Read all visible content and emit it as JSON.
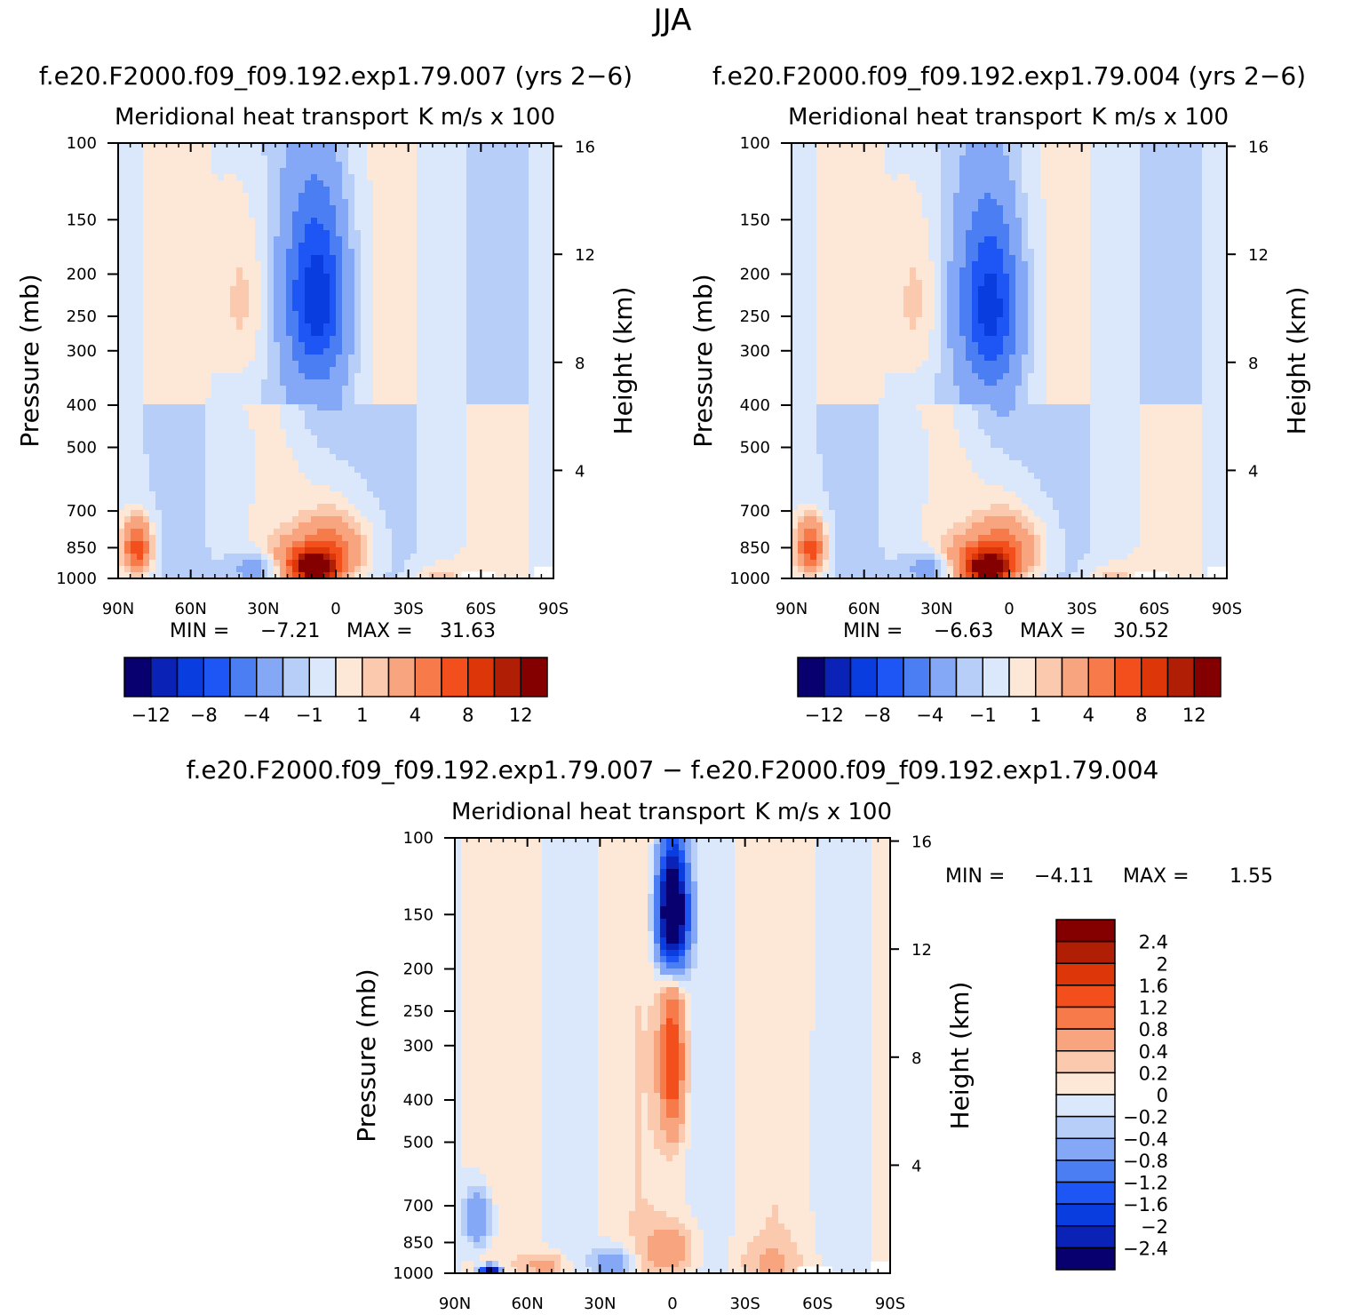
{
  "figure": {
    "title": "JJA"
  },
  "chart_data": [
    {
      "type": "heatmap",
      "title": "f.e20.F2000.f09_f09.192.exp1.79.007 (yrs 2−6)",
      "subtitle_left": "Meridional heat transport",
      "subtitle_right": "K m/s x 100",
      "xlabel": "",
      "ylabel": "Pressure (mb)",
      "y2label": "Height (km)",
      "x_ticks": [
        "90N",
        "60N",
        "30N",
        "0",
        "30S",
        "60S",
        "90S"
      ],
      "y_ticks": [
        "100",
        "150",
        "200",
        "250",
        "300",
        "400",
        "500",
        "700",
        "850",
        "1000"
      ],
      "y2_ticks": [
        "16",
        "12",
        "8",
        "4"
      ],
      "stats": {
        "min_label": "MIN =",
        "min": "−7.21",
        "max_label": "MAX =",
        "max": "31.63"
      },
      "colorbar_labels": [
        "−12",
        "−8",
        "−4",
        "−1",
        "1",
        "4",
        "8",
        "12"
      ],
      "blobs": [
        {
          "lat": 0,
          "p": 850,
          "v": 5,
          "rx": 14,
          "rp": 150
        },
        {
          "lat": 8,
          "p": 950,
          "v": 12,
          "rx": 8,
          "rp": 70
        },
        {
          "lat": 15,
          "p": 920,
          "v": 6,
          "rx": 14,
          "rp": 110
        },
        {
          "lat": 8,
          "p": 220,
          "v": -7.2,
          "rx": 12,
          "rp": 100
        },
        {
          "lat": 5,
          "p": 330,
          "v": -2,
          "rx": 14,
          "rp": 180
        },
        {
          "lat": 30,
          "p": 950,
          "v": -4,
          "rx": 12,
          "rp": 90
        },
        {
          "lat": 38,
          "p": 230,
          "v": 2,
          "rx": 10,
          "rp": 110
        },
        {
          "lat": -42,
          "p": 1000,
          "v": 2,
          "rx": 10,
          "rp": 80
        },
        {
          "lat": 82,
          "p": 850,
          "v": 8,
          "rx": 6,
          "rp": 120
        }
      ]
    },
    {
      "type": "heatmap",
      "title": "f.e20.F2000.f09_f09.192.exp1.79.004 (yrs 2−6)",
      "subtitle_left": "Meridional heat transport",
      "subtitle_right": "K m/s x 100",
      "xlabel": "",
      "ylabel": "Pressure (mb)",
      "y2label": "Height (km)",
      "x_ticks": [
        "90N",
        "60N",
        "30N",
        "0",
        "30S",
        "60S",
        "90S"
      ],
      "y_ticks": [
        "100",
        "150",
        "200",
        "250",
        "300",
        "400",
        "500",
        "700",
        "850",
        "1000"
      ],
      "y2_ticks": [
        "16",
        "12",
        "8",
        "4"
      ],
      "stats": {
        "min_label": "MIN =",
        "min": "−6.63",
        "max_label": "MAX =",
        "max": "30.52"
      },
      "colorbar_labels": [
        "−12",
        "−8",
        "−4",
        "−1",
        "1",
        "4",
        "8",
        "12"
      ],
      "blobs": [
        {
          "lat": 0,
          "p": 850,
          "v": 5,
          "rx": 14,
          "rp": 150
        },
        {
          "lat": 8,
          "p": 950,
          "v": 11,
          "rx": 8,
          "rp": 70
        },
        {
          "lat": 15,
          "p": 920,
          "v": 6,
          "rx": 14,
          "rp": 110
        },
        {
          "lat": 8,
          "p": 230,
          "v": -6.6,
          "rx": 12,
          "rp": 100
        },
        {
          "lat": 5,
          "p": 330,
          "v": -2,
          "rx": 14,
          "rp": 180
        },
        {
          "lat": 30,
          "p": 950,
          "v": -4,
          "rx": 12,
          "rp": 90
        },
        {
          "lat": 38,
          "p": 230,
          "v": 2,
          "rx": 10,
          "rp": 110
        },
        {
          "lat": -42,
          "p": 1000,
          "v": 2,
          "rx": 10,
          "rp": 80
        },
        {
          "lat": 82,
          "p": 850,
          "v": 8,
          "rx": 6,
          "rp": 120
        }
      ]
    },
    {
      "type": "heatmap",
      "title": "f.e20.F2000.f09_f09.192.exp1.79.007 − f.e20.F2000.f09_f09.192.exp1.79.004",
      "subtitle_left": "Meridional heat transport",
      "subtitle_right": "K m/s x 100",
      "xlabel": "",
      "ylabel": "Pressure (mb)",
      "y2label": "Height (km)",
      "x_ticks": [
        "90N",
        "60N",
        "30N",
        "0",
        "30S",
        "60S",
        "90S"
      ],
      "y_ticks": [
        "100",
        "150",
        "200",
        "250",
        "300",
        "400",
        "500",
        "700",
        "850",
        "1000"
      ],
      "y2_ticks": [
        "16",
        "12",
        "8",
        "4"
      ],
      "stats": {
        "min_label": "MIN =",
        "min": "−4.11",
        "max_label": "MAX =",
        "max": "1.55"
      },
      "colorbar_labels": [
        "2.4",
        "2",
        "1.6",
        "1.2",
        "0.8",
        "0.4",
        "0.2",
        "0",
        "−0.2",
        "−0.4",
        "−0.8",
        "−1.2",
        "−1.6",
        "−2",
        "−2.4"
      ],
      "blobs": [
        {
          "lat": 0,
          "p": 150,
          "v": -4.1,
          "rx": 6,
          "rp": 50
        },
        {
          "lat": 0,
          "p": 330,
          "v": 1.55,
          "rx": 5,
          "rp": 140
        },
        {
          "lat": 0,
          "p": 880,
          "v": 0.6,
          "rx": 10,
          "rp": 120
        },
        {
          "lat": 25,
          "p": 950,
          "v": -0.8,
          "rx": 8,
          "rp": 80
        },
        {
          "lat": 75,
          "p": 990,
          "v": -3,
          "rx": 4,
          "rp": 30
        },
        {
          "lat": 80,
          "p": 750,
          "v": -0.9,
          "rx": 6,
          "rp": 120
        },
        {
          "lat": 52,
          "p": 960,
          "v": 0.6,
          "rx": 8,
          "rp": 60
        },
        {
          "lat": -40,
          "p": 950,
          "v": 0.3,
          "rx": 12,
          "rp": 100
        },
        {
          "lat": -60,
          "p": 500,
          "v": -0.1,
          "rx": 8,
          "rp": 200
        }
      ]
    }
  ]
}
